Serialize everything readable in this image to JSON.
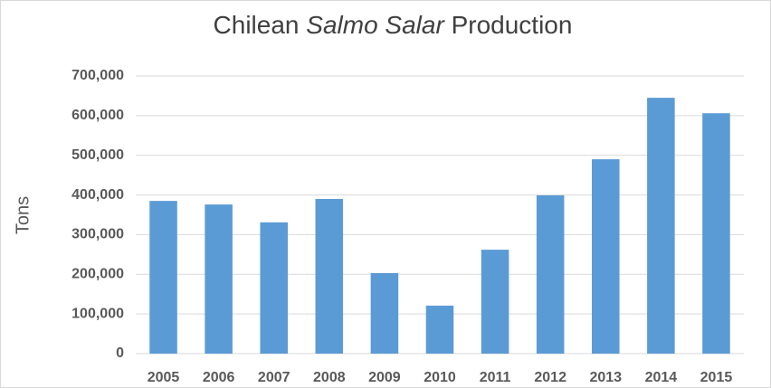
{
  "chart_data": {
    "type": "bar",
    "title": [
      "Chilean ",
      "Salmo Salar",
      " Production"
    ],
    "y_label": "Tons",
    "categories": [
      "2005",
      "2006",
      "2007",
      "2008",
      "2009",
      "2010",
      "2011",
      "2012",
      "2013",
      "2014",
      "2015"
    ],
    "values": [
      385000,
      376000,
      331000,
      390000,
      203000,
      121000,
      262000,
      399000,
      490000,
      645000,
      606000
    ],
    "color": "#5b9bd5",
    "ylim": [
      0,
      700000
    ],
    "yticks": [
      0,
      {
        "value": 100000,
        "label": "100,000"
      },
      {
        "value": 200000,
        "label": "200,000"
      },
      {
        "value": 300000,
        "label": "300,000"
      },
      {
        "value": 400000,
        "label": "400,000"
      },
      {
        "value": 500000,
        "label": "500,000"
      },
      {
        "value": 600000,
        "label": "600,000"
      },
      {
        "value": 700000,
        "label": "700,000"
      }
    ],
    "grid": true
  }
}
